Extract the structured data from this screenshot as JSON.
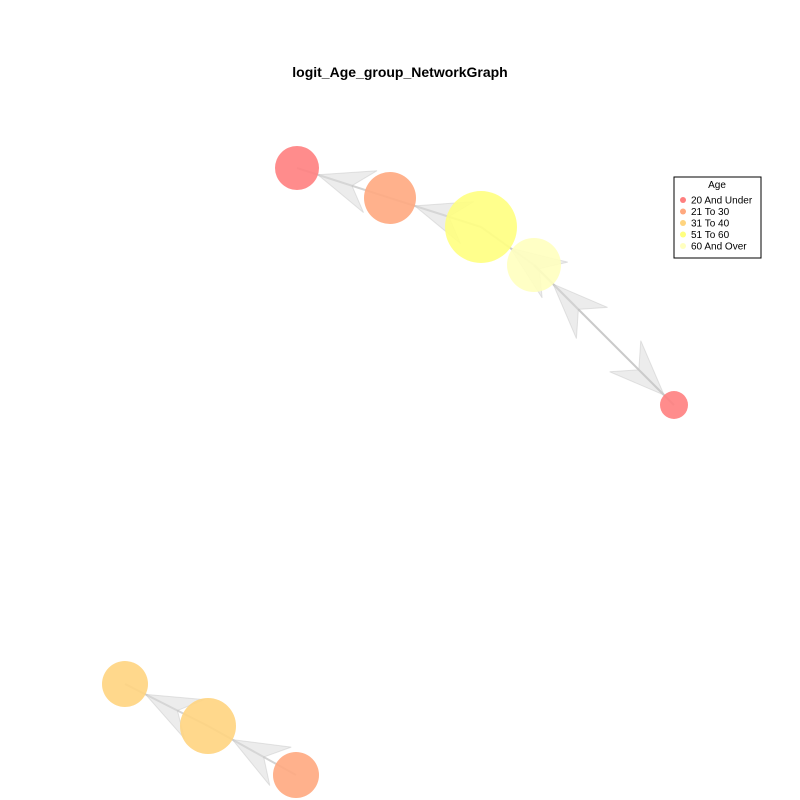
{
  "title": "logit_Age_group_NetworkGraph",
  "legend": {
    "title": "Age",
    "entries": [
      {
        "label": "20 And Under",
        "color": "#FF7F7F"
      },
      {
        "label": "21 To 30",
        "color": "#FFA97F"
      },
      {
        "label": "31 To 40",
        "color": "#FFD47F"
      },
      {
        "label": "51 To 60",
        "color": "#FFFF7F"
      },
      {
        "label": "60 And Over",
        "color": "#FFFFBF"
      }
    ]
  },
  "colors": {
    "edge": "#C8C8C8",
    "arrow": "#D9D9D9"
  }
}
